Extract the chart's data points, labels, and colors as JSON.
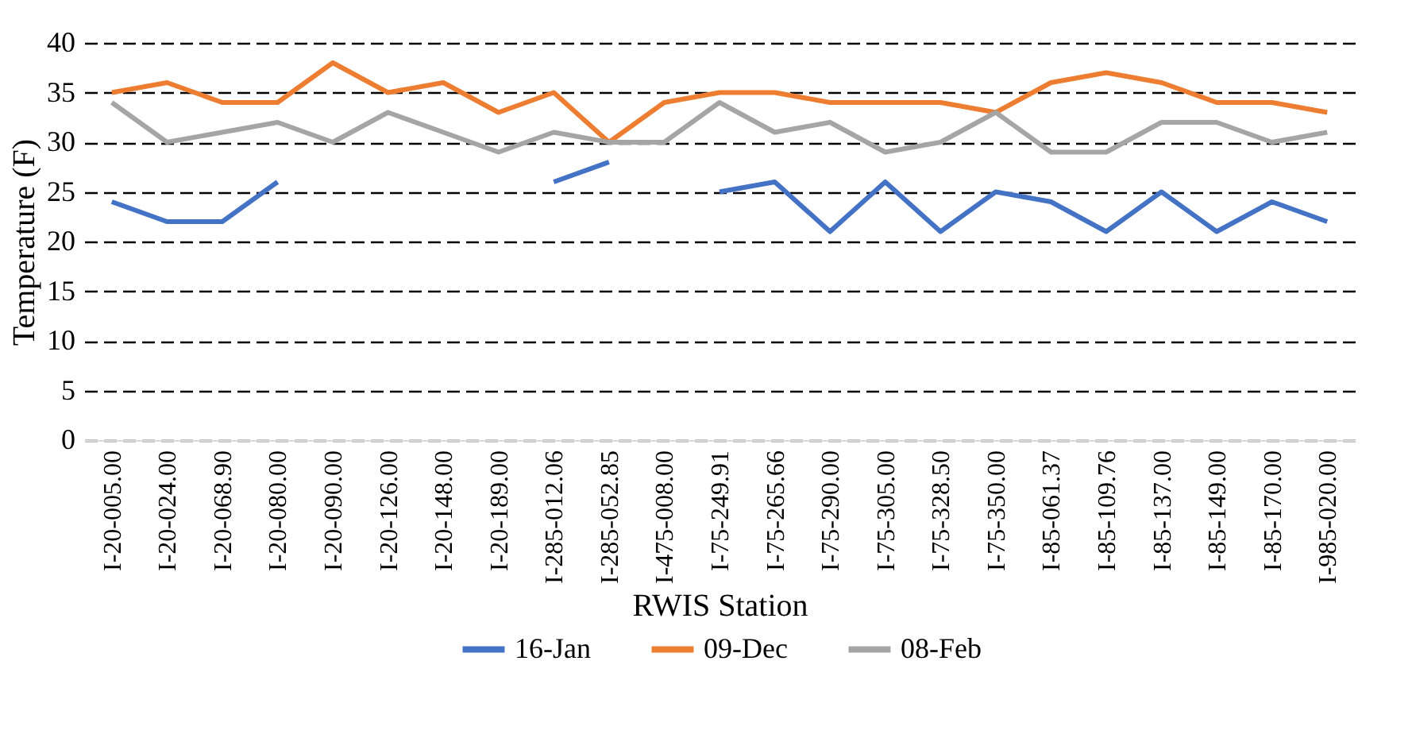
{
  "chart_data": {
    "type": "line",
    "xlabel": "RWIS Station",
    "ylabel": "Temperature (F)",
    "categories": [
      "I-20-005.00",
      "I-20-024.00",
      "I-20-068.90",
      "I-20-080.00",
      "I-20-090.00",
      "I-20-126.00",
      "I-20-148.00",
      "I-20-189.00",
      "I-285-012.06",
      "I-285-052.85",
      "I-475-008.00",
      "I-75-249.91",
      "I-75-265.66",
      "I-75-290.00",
      "I-75-305.00",
      "I-75-328.50",
      "I-75-350.00",
      "I-85-061.37",
      "I-85-109.76",
      "I-85-137.00",
      "I-85-149.00",
      "I-85-170.00",
      "I-985-020.00"
    ],
    "series": [
      {
        "name": "16-Jan",
        "color": "#4472c4",
        "values": [
          24,
          22,
          22,
          26,
          null,
          null,
          null,
          null,
          26,
          28,
          null,
          25,
          26,
          21,
          26,
          21,
          25,
          24,
          21,
          25,
          21,
          24,
          22
        ]
      },
      {
        "name": "09-Dec",
        "color": "#ed7d31",
        "values": [
          35,
          36,
          34,
          34,
          38,
          35,
          36,
          33,
          35,
          30,
          34,
          35,
          35,
          34,
          34,
          34,
          33,
          36,
          37,
          36,
          34,
          34,
          33
        ]
      },
      {
        "name": "08-Feb",
        "color": "#a5a5a5",
        "values": [
          34,
          30,
          31,
          32,
          30,
          33,
          31,
          29,
          31,
          30,
          30,
          34,
          31,
          32,
          29,
          30,
          33,
          29,
          29,
          32,
          32,
          30,
          31
        ]
      }
    ],
    "ylim": [
      0,
      40
    ],
    "yticks": [
      0,
      5,
      10,
      15,
      20,
      25,
      30,
      35,
      40
    ],
    "grid": "y",
    "legend": "bottom",
    "marker": "none",
    "line_style": "solid"
  }
}
